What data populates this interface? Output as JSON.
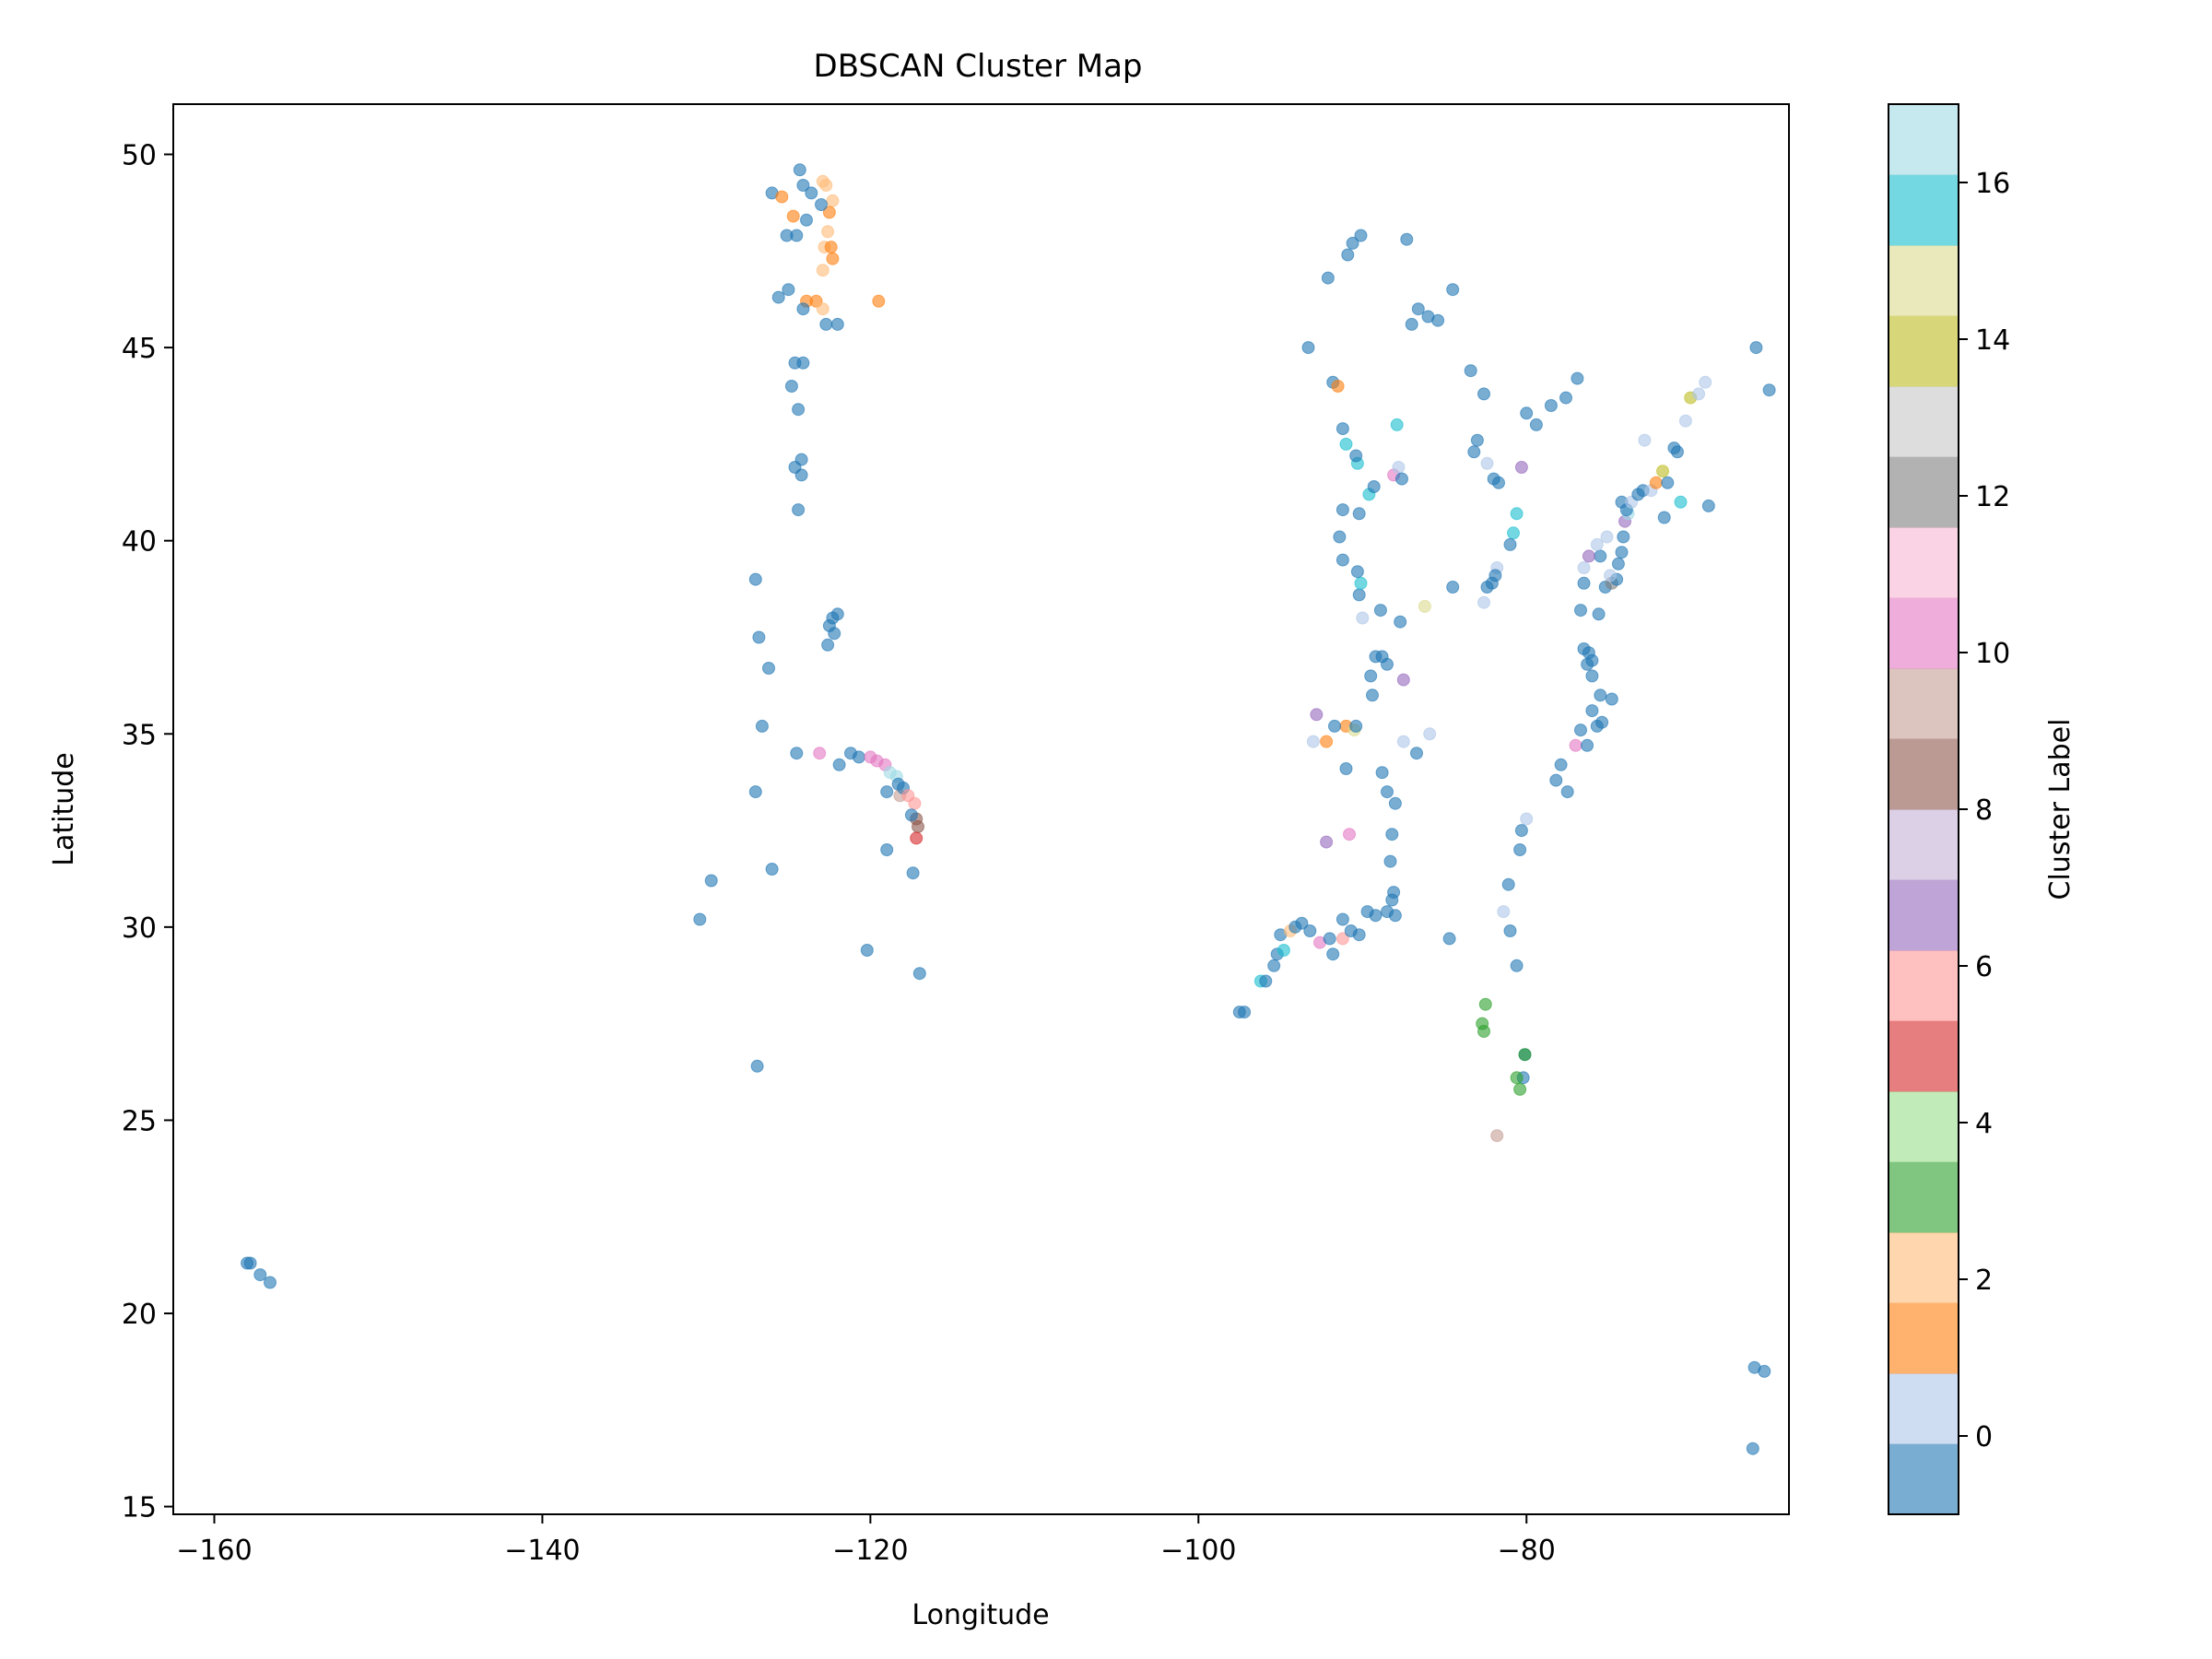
{
  "chart_data": {
    "type": "scatter",
    "title": "DBSCAN Cluster Map",
    "xlabel": "Longitude",
    "ylabel": "Latitude",
    "xlim": [
      -162.5,
      -64.0
    ],
    "ylim": [
      14.8,
      51.3
    ],
    "xticks": [
      -160,
      -140,
      -120,
      -100,
      -80
    ],
    "xtick_labels": [
      "−160",
      "−140",
      "−120",
      "−100",
      "−80"
    ],
    "yticks": [
      15,
      20,
      25,
      30,
      35,
      40,
      45,
      50
    ],
    "ytick_labels": [
      "15",
      "20",
      "25",
      "30",
      "35",
      "40",
      "45",
      "50"
    ],
    "grid": false,
    "colorbar": {
      "label": "Cluster Label",
      "range": [
        -1,
        17
      ],
      "ticks": [
        0,
        2,
        4,
        6,
        8,
        10,
        12,
        14,
        16
      ],
      "tick_labels": [
        "0",
        "2",
        "4",
        "6",
        "8",
        "10",
        "12",
        "14",
        "16"
      ],
      "colormap": "tab20",
      "colors": [
        "#1f77b4",
        "#aec7e8",
        "#ff7f0e",
        "#ffbb78",
        "#2ca02c",
        "#98df8a",
        "#d62728",
        "#ff9896",
        "#9467bd",
        "#c5b0d5",
        "#8c564b",
        "#c49c94",
        "#e377c2",
        "#f7b6d2",
        "#7f7f7f",
        "#c7c7c7",
        "#bcbd22",
        "#dbdb8d",
        "#17becf",
        "#9edae5"
      ]
    },
    "marker_alpha": 0.6,
    "points": [
      [
        -158.0,
        21.3,
        -1
      ],
      [
        -157.8,
        21.3,
        -1
      ],
      [
        -157.2,
        21.0,
        -1
      ],
      [
        -156.6,
        20.8,
        -1
      ],
      [
        -124.3,
        49.6,
        -1
      ],
      [
        -124.1,
        49.2,
        -1
      ],
      [
        -123.6,
        49.0,
        -1
      ],
      [
        -126.0,
        49.0,
        -1
      ],
      [
        -125.4,
        48.9,
        1
      ],
      [
        -124.7,
        48.4,
        1
      ],
      [
        -123.9,
        48.3,
        -1
      ],
      [
        -122.9,
        49.3,
        2
      ],
      [
        -122.7,
        49.2,
        2
      ],
      [
        -122.3,
        48.8,
        2
      ],
      [
        -122.5,
        48.5,
        1
      ],
      [
        -123.0,
        48.7,
        -1
      ],
      [
        -122.6,
        48.0,
        2
      ],
      [
        -122.8,
        47.6,
        2
      ],
      [
        -122.4,
        47.6,
        1
      ],
      [
        -122.3,
        47.3,
        1
      ],
      [
        -122.9,
        47.0,
        2
      ],
      [
        -125.1,
        47.9,
        -1
      ],
      [
        -124.5,
        47.9,
        -1
      ],
      [
        -119.5,
        46.2,
        1
      ],
      [
        -125.6,
        46.3,
        -1
      ],
      [
        -125.0,
        46.5,
        -1
      ],
      [
        -123.9,
        46.2,
        1
      ],
      [
        -123.3,
        46.2,
        1
      ],
      [
        -122.9,
        46.0,
        2
      ],
      [
        -122.7,
        45.6,
        -1
      ],
      [
        -122.0,
        45.6,
        -1
      ],
      [
        -124.1,
        46.0,
        -1
      ],
      [
        -124.6,
        44.6,
        -1
      ],
      [
        -124.1,
        44.6,
        -1
      ],
      [
        -124.8,
        44.0,
        -1
      ],
      [
        -124.4,
        43.4,
        -1
      ],
      [
        -124.2,
        42.1,
        -1
      ],
      [
        -124.6,
        41.9,
        -1
      ],
      [
        -124.2,
        41.7,
        -1
      ],
      [
        -124.4,
        40.8,
        -1
      ],
      [
        -127.0,
        39.0,
        -1
      ],
      [
        -122.3,
        38.0,
        -1
      ],
      [
        -122.0,
        38.1,
        -1
      ],
      [
        -122.5,
        37.8,
        -1
      ],
      [
        -122.2,
        37.6,
        -1
      ],
      [
        -122.6,
        37.3,
        -1
      ],
      [
        -126.8,
        37.5,
        -1
      ],
      [
        -126.2,
        36.7,
        -1
      ],
      [
        -126.6,
        35.2,
        -1
      ],
      [
        -124.5,
        34.5,
        -1
      ],
      [
        -123.1,
        34.5,
        10
      ],
      [
        -121.2,
        34.5,
        -1
      ],
      [
        -120.7,
        34.4,
        -1
      ],
      [
        -120.0,
        34.4,
        10
      ],
      [
        -119.6,
        34.3,
        10
      ],
      [
        -119.1,
        34.2,
        10
      ],
      [
        -118.8,
        34.0,
        19
      ],
      [
        -118.4,
        33.9,
        19
      ],
      [
        -118.3,
        33.7,
        -1
      ],
      [
        -118.2,
        33.4,
        9
      ],
      [
        -118.0,
        33.6,
        -1
      ],
      [
        -117.7,
        33.4,
        6
      ],
      [
        -117.3,
        33.2,
        6
      ],
      [
        -117.2,
        32.8,
        8
      ],
      [
        -117.1,
        32.6,
        8
      ],
      [
        -117.2,
        32.3,
        5
      ],
      [
        -121.9,
        34.2,
        -1
      ],
      [
        -119.0,
        33.5,
        -1
      ],
      [
        -117.5,
        32.9,
        -1
      ],
      [
        -119.0,
        32.0,
        -1
      ],
      [
        -117.4,
        31.4,
        -1
      ],
      [
        -120.2,
        29.4,
        -1
      ],
      [
        -117.0,
        28.8,
        -1
      ],
      [
        -127.0,
        33.5,
        -1
      ],
      [
        -126.0,
        31.5,
        -1
      ],
      [
        -129.7,
        31.2,
        -1
      ],
      [
        -130.4,
        30.2,
        -1
      ],
      [
        -126.9,
        26.4,
        -1
      ],
      [
        -97.5,
        27.8,
        -1
      ],
      [
        -97.2,
        27.8,
        -1
      ],
      [
        -96.2,
        28.6,
        16
      ],
      [
        -95.9,
        28.6,
        -1
      ],
      [
        -95.4,
        29.0,
        -1
      ],
      [
        -95.2,
        29.3,
        -1
      ],
      [
        -94.8,
        29.4,
        16
      ],
      [
        -95.0,
        29.8,
        -1
      ],
      [
        -94.4,
        29.9,
        2
      ],
      [
        -94.1,
        30.0,
        -1
      ],
      [
        -93.7,
        30.1,
        -1
      ],
      [
        -93.2,
        29.9,
        -1
      ],
      [
        -92.6,
        29.6,
        10
      ],
      [
        -92.0,
        29.7,
        -1
      ],
      [
        -91.2,
        29.7,
        6
      ],
      [
        -90.7,
        29.9,
        -1
      ],
      [
        -90.2,
        29.8,
        -1
      ],
      [
        -89.7,
        30.4,
        -1
      ],
      [
        -89.2,
        30.3,
        -1
      ],
      [
        -88.5,
        30.4,
        -1
      ],
      [
        -88.0,
        30.3,
        -1
      ],
      [
        -91.2,
        30.2,
        -1
      ],
      [
        -91.8,
        29.3,
        -1
      ],
      [
        -88.2,
        30.7,
        -1
      ],
      [
        -88.1,
        30.9,
        -1
      ],
      [
        -88.3,
        31.7,
        -1
      ],
      [
        -88.2,
        32.4,
        -1
      ],
      [
        -88.0,
        33.2,
        -1
      ],
      [
        -88.5,
        33.5,
        -1
      ],
      [
        -88.8,
        34.0,
        -1
      ],
      [
        -91.0,
        34.1,
        -1
      ],
      [
        -90.8,
        32.4,
        10
      ],
      [
        -92.2,
        32.2,
        7
      ],
      [
        -91.0,
        35.2,
        1
      ],
      [
        -90.5,
        35.1,
        15
      ],
      [
        -90.4,
        35.2,
        -1
      ],
      [
        -91.7,
        35.2,
        -1
      ],
      [
        -92.2,
        34.8,
        1
      ],
      [
        -93.0,
        34.8,
        0
      ],
      [
        -92.8,
        35.5,
        7
      ],
      [
        -89.4,
        36.0,
        -1
      ],
      [
        -89.5,
        36.5,
        -1
      ],
      [
        -89.2,
        37.0,
        -1
      ],
      [
        -88.8,
        37.0,
        -1
      ],
      [
        -88.5,
        36.8,
        -1
      ],
      [
        -87.5,
        36.4,
        7
      ],
      [
        -88.9,
        38.2,
        -1
      ],
      [
        -90.2,
        38.6,
        -1
      ],
      [
        -90.1,
        38.9,
        16
      ],
      [
        -90.3,
        39.2,
        -1
      ],
      [
        -91.2,
        39.5,
        -1
      ],
      [
        -91.4,
        40.1,
        -1
      ],
      [
        -91.2,
        40.8,
        -1
      ],
      [
        -90.2,
        40.7,
        -1
      ],
      [
        -89.6,
        41.2,
        16
      ],
      [
        -89.3,
        41.4,
        -1
      ],
      [
        -88.1,
        41.7,
        10
      ],
      [
        -87.8,
        41.9,
        0
      ],
      [
        -87.6,
        41.6,
        -1
      ],
      [
        -90.3,
        42.0,
        16
      ],
      [
        -90.4,
        42.2,
        -1
      ],
      [
        -91.0,
        42.5,
        16
      ],
      [
        -91.2,
        42.9,
        -1
      ],
      [
        -87.9,
        43.0,
        16
      ],
      [
        -90.0,
        38.0,
        0
      ],
      [
        -87.7,
        37.9,
        -1
      ],
      [
        -86.2,
        38.3,
        15
      ],
      [
        -84.5,
        38.8,
        -1
      ],
      [
        -87.5,
        34.8,
        0
      ],
      [
        -86.7,
        34.5,
        -1
      ],
      [
        -85.9,
        35.0,
        0
      ],
      [
        -84.7,
        29.7,
        -1
      ],
      [
        -91.8,
        44.1,
        -1
      ],
      [
        -91.5,
        44.0,
        1
      ],
      [
        -93.3,
        45.0,
        -1
      ],
      [
        -92.1,
        46.8,
        -1
      ],
      [
        -90.9,
        47.4,
        -1
      ],
      [
        -90.6,
        47.7,
        -1
      ],
      [
        -90.1,
        47.9,
        -1
      ],
      [
        -87.3,
        47.8,
        -1
      ],
      [
        -87.0,
        45.6,
        -1
      ],
      [
        -86.6,
        46.0,
        -1
      ],
      [
        -86.0,
        45.8,
        -1
      ],
      [
        -85.4,
        45.7,
        -1
      ],
      [
        -84.5,
        46.5,
        -1
      ],
      [
        -83.4,
        44.4,
        -1
      ],
      [
        -82.6,
        43.8,
        -1
      ],
      [
        -83.0,
        42.6,
        -1
      ],
      [
        -83.2,
        42.3,
        -1
      ],
      [
        -82.4,
        42.0,
        0
      ],
      [
        -81.7,
        41.5,
        -1
      ],
      [
        -80.3,
        41.9,
        7
      ],
      [
        -82.0,
        41.6,
        -1
      ],
      [
        -80.6,
        40.7,
        16
      ],
      [
        -80.8,
        40.2,
        16
      ],
      [
        -81.0,
        39.9,
        -1
      ],
      [
        -80.0,
        43.3,
        -1
      ],
      [
        -79.4,
        43.0,
        -1
      ],
      [
        -78.5,
        43.5,
        -1
      ],
      [
        -77.6,
        43.7,
        -1
      ],
      [
        -76.9,
        44.2,
        -1
      ],
      [
        -81.8,
        39.3,
        0
      ],
      [
        -81.9,
        39.1,
        -1
      ],
      [
        -82.1,
        38.9,
        -1
      ],
      [
        -82.6,
        38.4,
        0
      ],
      [
        -82.4,
        38.8,
        -1
      ],
      [
        -80.0,
        32.8,
        0
      ],
      [
        -80.3,
        32.5,
        -1
      ],
      [
        -80.4,
        32.0,
        -1
      ],
      [
        -81.1,
        31.1,
        -1
      ],
      [
        -81.4,
        30.4,
        0
      ],
      [
        -81.0,
        29.9,
        -1
      ],
      [
        -80.6,
        29.0,
        -1
      ],
      [
        -82.5,
        28.0,
        3
      ],
      [
        -82.7,
        27.5,
        3
      ],
      [
        -82.6,
        27.3,
        3
      ],
      [
        -80.1,
        26.7,
        -1
      ],
      [
        -80.2,
        26.1,
        -1
      ],
      [
        -80.4,
        25.8,
        3
      ],
      [
        -80.6,
        26.1,
        3
      ],
      [
        -80.1,
        26.7,
        3
      ],
      [
        -81.8,
        24.6,
        9
      ],
      [
        -78.2,
        33.8,
        -1
      ],
      [
        -77.9,
        34.2,
        -1
      ],
      [
        -77.5,
        33.5,
        -1
      ],
      [
        -77.0,
        34.7,
        10
      ],
      [
        -76.7,
        35.1,
        -1
      ],
      [
        -76.3,
        34.7,
        -1
      ],
      [
        -75.7,
        35.2,
        -1
      ],
      [
        -75.4,
        35.3,
        -1
      ],
      [
        -76.0,
        35.6,
        -1
      ],
      [
        -75.5,
        36.0,
        -1
      ],
      [
        -76.0,
        36.5,
        -1
      ],
      [
        -76.3,
        36.8,
        -1
      ],
      [
        -76.2,
        37.1,
        -1
      ],
      [
        -76.5,
        37.2,
        -1
      ],
      [
        -76.0,
        36.9,
        -1
      ],
      [
        -74.8,
        35.9,
        -1
      ],
      [
        -76.7,
        38.2,
        -1
      ],
      [
        -76.5,
        38.9,
        -1
      ],
      [
        -75.6,
        38.1,
        -1
      ],
      [
        -75.2,
        38.8,
        -1
      ],
      [
        -74.8,
        38.9,
        12
      ],
      [
        -74.5,
        39.0,
        -1
      ],
      [
        -74.4,
        39.4,
        -1
      ],
      [
        -74.2,
        39.7,
        -1
      ],
      [
        -74.1,
        40.1,
        -1
      ],
      [
        -74.0,
        40.5,
        7
      ],
      [
        -73.8,
        40.7,
        18
      ],
      [
        -73.9,
        40.8,
        -1
      ],
      [
        -74.2,
        41.0,
        -1
      ],
      [
        -73.6,
        41.0,
        0
      ],
      [
        -73.2,
        41.2,
        -1
      ],
      [
        -72.9,
        41.3,
        -1
      ],
      [
        -72.4,
        41.3,
        0
      ],
      [
        -72.1,
        41.5,
        1
      ],
      [
        -71.4,
        41.5,
        -1
      ],
      [
        -71.7,
        41.8,
        14
      ],
      [
        -71.0,
        42.4,
        -1
      ],
      [
        -70.8,
        42.3,
        -1
      ],
      [
        -70.3,
        43.1,
        0
      ],
      [
        -70.0,
        43.7,
        14
      ],
      [
        -69.5,
        43.8,
        0
      ],
      [
        -69.1,
        44.1,
        0
      ],
      [
        -70.6,
        41.0,
        16
      ],
      [
        -68.9,
        40.9,
        -1
      ],
      [
        -71.6,
        40.6,
        -1
      ],
      [
        -74.9,
        39.1,
        0
      ],
      [
        -75.5,
        39.6,
        -1
      ],
      [
        -75.7,
        39.9,
        0
      ],
      [
        -76.5,
        39.3,
        0
      ],
      [
        -76.2,
        39.6,
        7
      ],
      [
        -75.1,
        40.1,
        0
      ],
      [
        -72.8,
        42.6,
        0
      ],
      [
        -66.0,
        45.0,
        -1
      ],
      [
        -65.2,
        43.9,
        -1
      ],
      [
        -66.1,
        18.6,
        -1
      ],
      [
        -65.5,
        18.5,
        -1
      ],
      [
        -66.2,
        16.5,
        -1
      ]
    ]
  }
}
